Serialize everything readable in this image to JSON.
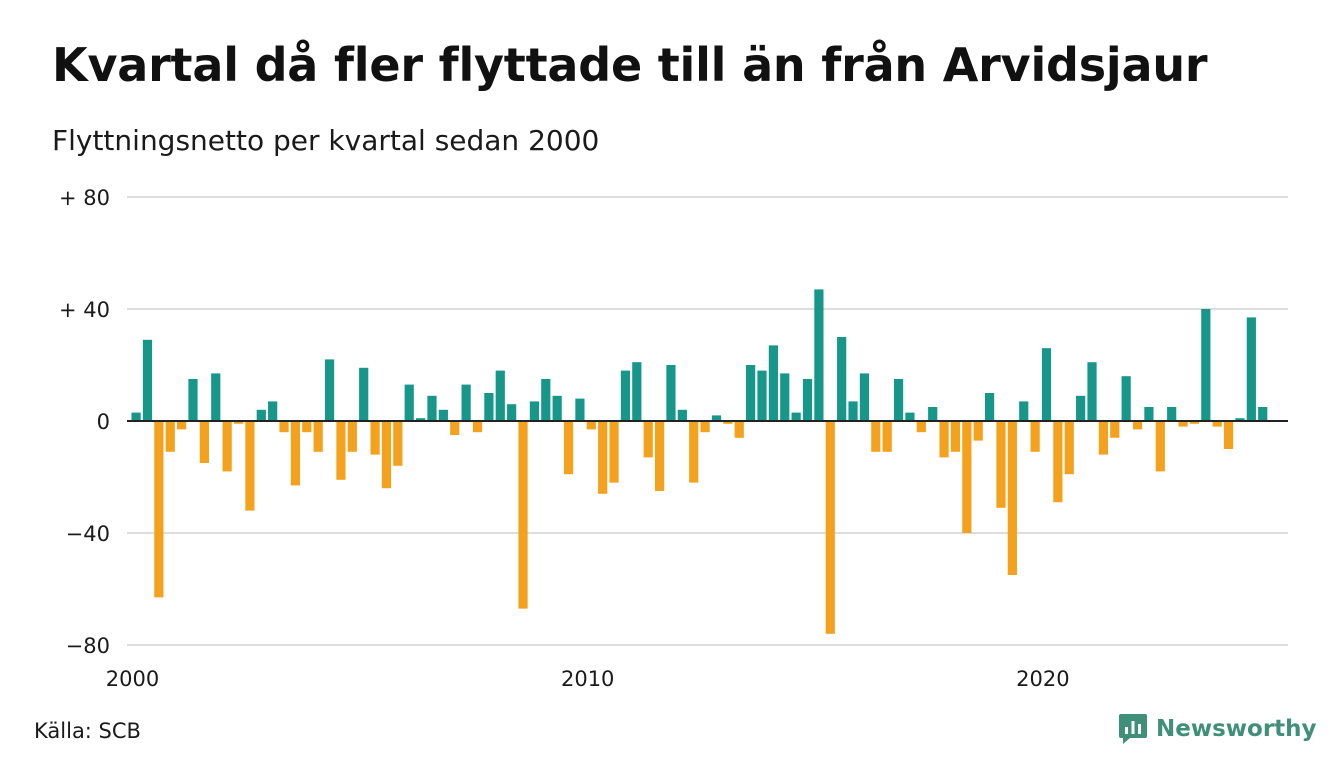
{
  "title": "Kvartal då fler flyttade till än från Arvidsjaur",
  "subtitle": "Flyttningsnetto per kvartal sedan 2000",
  "source": "Källa: SCB",
  "brand": "Newsworthy",
  "colors": {
    "positive": "#17968a",
    "negative": "#f4a11e",
    "grid": "#dddddd",
    "axis": "#222222",
    "brand": "#3f8f79"
  },
  "chart_data": {
    "type": "bar",
    "title": "Kvartal då fler flyttade till än från Arvidsjaur",
    "subtitle": "Flyttningsnetto per kvartal sedan 2000",
    "x_start_year": 2000,
    "xticks": [
      "2000",
      "2010",
      "2020"
    ],
    "ylim": [
      -80,
      80
    ],
    "yticks": [
      {
        "value": 80,
        "label": "+ 80"
      },
      {
        "value": 40,
        "label": "+ 40"
      },
      {
        "value": 0,
        "label": "0"
      },
      {
        "value": -40,
        "label": "−40"
      },
      {
        "value": -80,
        "label": "−80"
      }
    ],
    "grid": true,
    "values": [
      3,
      29,
      -63,
      -11,
      -3,
      15,
      -15,
      17,
      -18,
      -1,
      -32,
      4,
      7,
      -4,
      -23,
      -4,
      -11,
      22,
      -21,
      -11,
      19,
      -12,
      -24,
      -16,
      13,
      1,
      9,
      4,
      -5,
      13,
      -4,
      10,
      18,
      6,
      -67,
      7,
      15,
      9,
      -19,
      8,
      -3,
      -26,
      -22,
      18,
      21,
      -13,
      -25,
      20,
      4,
      -22,
      -4,
      2,
      -1,
      -6,
      20,
      18,
      27,
      17,
      3,
      15,
      47,
      -76,
      30,
      7,
      17,
      -11,
      -11,
      15,
      3,
      -4,
      5,
      -13,
      -11,
      -40,
      -7,
      10,
      -31,
      -55,
      7,
      -11,
      26,
      -29,
      -19,
      9,
      21,
      -12,
      -6,
      16,
      -3,
      5,
      -18,
      5,
      -2,
      -1,
      40,
      -2,
      -10,
      1,
      37,
      5
    ]
  }
}
